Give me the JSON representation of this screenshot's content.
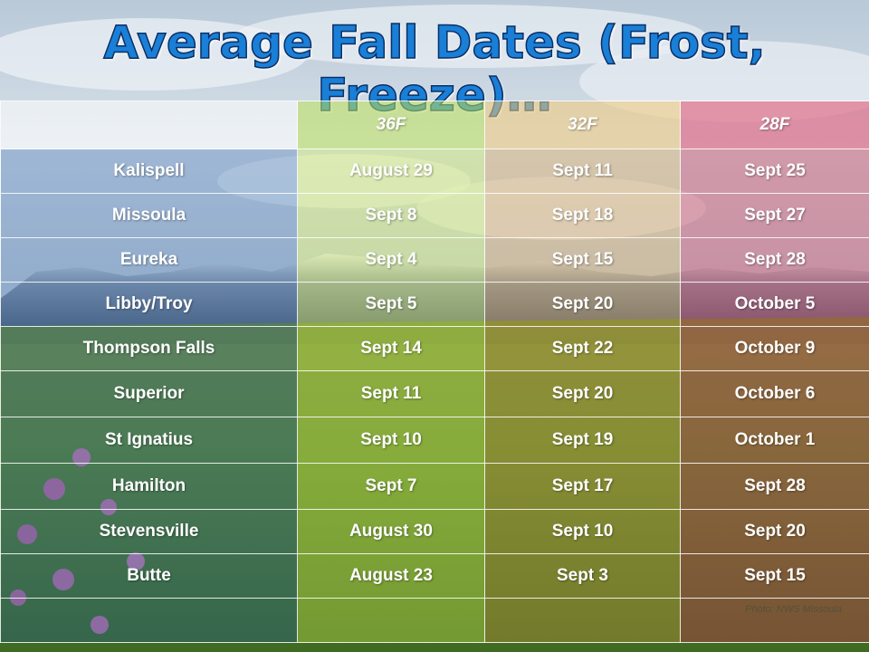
{
  "title": "Average Fall Dates (Frost, Freeze)…",
  "columns": [
    "",
    "36F",
    "32F",
    "28F"
  ],
  "rows": [
    {
      "location": "Kalispell",
      "f36": "August 29",
      "f32": "Sept 11",
      "f28": "Sept 25"
    },
    {
      "location": "Missoula",
      "f36": "Sept 8",
      "f32": "Sept 18",
      "f28": "Sept 27"
    },
    {
      "location": "Eureka",
      "f36": "Sept 4",
      "f32": "Sept 15",
      "f28": "Sept 28"
    },
    {
      "location": "Libby/Troy",
      "f36": "Sept 5",
      "f32": "Sept 20",
      "f28": "October 5"
    },
    {
      "location": "Thompson Falls",
      "f36": "Sept 14",
      "f32": "Sept 22",
      "f28": "October 9"
    },
    {
      "location": "Superior",
      "f36": "Sept 11",
      "f32": "Sept 20",
      "f28": "October 6"
    },
    {
      "location": "St Ignatius",
      "f36": "Sept 10",
      "f32": "Sept 19",
      "f28": "October 1"
    },
    {
      "location": "Hamilton",
      "f36": "Sept 7",
      "f32": "Sept 17",
      "f28": "Sept 28"
    },
    {
      "location": "Stevensville",
      "f36": "August 30",
      "f32": "Sept 10",
      "f28": "Sept 20"
    },
    {
      "location": "Butte",
      "f36": "August 23",
      "f32": "Sept 3",
      "f28": "Sept 15"
    }
  ],
  "photo_credit": "Photo: NWS Missoula",
  "colors": {
    "title": "#1a7fd6",
    "header_36": "#1c5aa6",
    "header_32": "#1c5aa6",
    "header_28": "#1ea0e6"
  }
}
